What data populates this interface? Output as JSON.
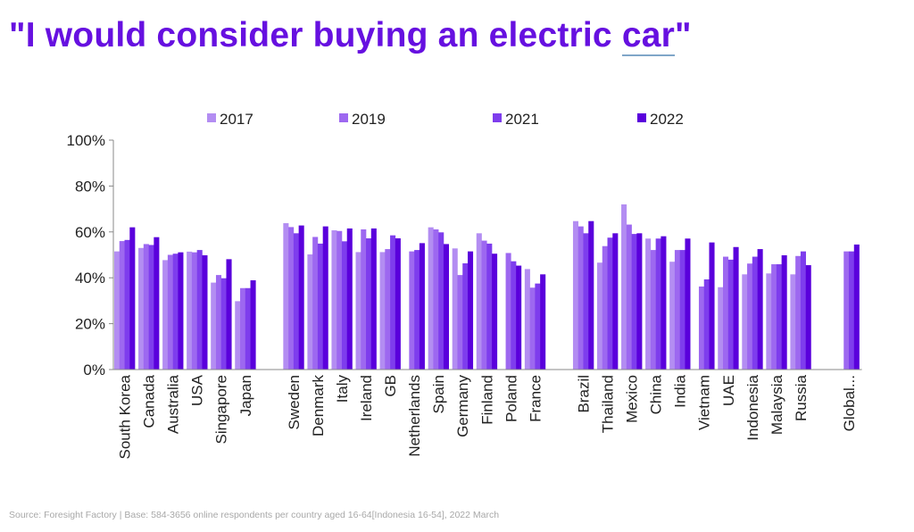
{
  "title": {
    "prefix": "\"I would consider buying an electric ",
    "underlined": "car",
    "suffix": "\""
  },
  "source": "Source: Foresight Factory | Base:  584-3656 online respondents per country aged 16-64[Indonesia 16-54],  2022 March",
  "chart_data": {
    "type": "bar",
    "title": "\"I would consider buying an electric car\"",
    "xlabel": "",
    "ylabel": "",
    "ylim": [
      0,
      100
    ],
    "yticks": [
      "0%",
      "20%",
      "40%",
      "60%",
      "80%",
      "100%"
    ],
    "legend_position": "top",
    "grid": false,
    "series": [
      {
        "name": "2017",
        "color": "#b38df2"
      },
      {
        "name": "2019",
        "color": "#9d68f0"
      },
      {
        "name": "2021",
        "color": "#7e3ded"
      },
      {
        "name": "2022",
        "color": "#5a00dc"
      }
    ],
    "groups": [
      [
        {
          "category": "South Korea",
          "values": [
            51.5,
            56,
            56.5,
            62
          ]
        },
        {
          "category": "Canada",
          "values": [
            53,
            54.7,
            54.3,
            57.7
          ]
        },
        {
          "category": "Australia",
          "values": [
            47.7,
            50,
            50.5,
            51.1
          ]
        },
        {
          "category": "USA",
          "values": [
            51.4,
            51.1,
            52.1,
            49.8
          ]
        },
        {
          "category": "Singapore",
          "values": [
            37.9,
            41.2,
            39.8,
            48.1
          ]
        },
        {
          "category": "Japan",
          "values": [
            29.8,
            35.5,
            35.5,
            38.9
          ]
        }
      ],
      [
        {
          "category": "Sweden",
          "values": [
            63.8,
            62.1,
            59.4,
            62.8
          ]
        },
        {
          "category": "Denmark",
          "values": [
            50.2,
            57.8,
            54.9,
            62.4
          ]
        },
        {
          "category": "Italy",
          "values": [
            60.7,
            60.4,
            55.9,
            61.5
          ]
        },
        {
          "category": "Ireland",
          "values": [
            51.2,
            61.1,
            57.2,
            61.5
          ]
        },
        {
          "category": "GB",
          "values": [
            51.2,
            52.5,
            58.5,
            57.2
          ]
        },
        {
          "category": "Netherlands",
          "values": [
            null,
            51.5,
            52.1,
            55.1
          ]
        },
        {
          "category": "Spain",
          "values": [
            62,
            61.1,
            59.8,
            54.7
          ]
        },
        {
          "category": "Germany",
          "values": [
            52.8,
            41.2,
            46.3,
            51.5
          ]
        },
        {
          "category": "Finland",
          "values": [
            59.4,
            56.2,
            54.9,
            50.5
          ]
        },
        {
          "category": "Poland",
          "values": [
            null,
            50.8,
            47.2,
            45.3
          ]
        },
        {
          "category": "France",
          "values": [
            43.8,
            35.7,
            37.5,
            41.5
          ]
        }
      ],
      [
        {
          "category": "Brazil",
          "values": [
            64.7,
            62.4,
            59.4,
            64.7
          ]
        },
        {
          "category": "Thailand",
          "values": [
            46.6,
            53.8,
            57.5,
            59.4
          ]
        },
        {
          "category": "Mexico",
          "values": [
            72,
            63.2,
            59.1,
            59.4
          ]
        },
        {
          "category": "China",
          "values": [
            57.1,
            52.1,
            57.1,
            58.1
          ]
        },
        {
          "category": "India",
          "values": [
            47,
            52.1,
            52.1,
            57.1
          ]
        },
        {
          "category": "Vietnam",
          "values": [
            null,
            36.2,
            39.3,
            55.4
          ]
        },
        {
          "category": "UAE",
          "values": [
            35.9,
            49.2,
            47.9,
            53.4
          ]
        },
        {
          "category": "Indonesia",
          "values": [
            41.5,
            46.2,
            49.2,
            52.5
          ]
        },
        {
          "category": "Malaysia",
          "values": [
            41.9,
            45.9,
            45.9,
            49.8
          ]
        },
        {
          "category": "Russia",
          "values": [
            41.5,
            49.5,
            51.5,
            45.5
          ]
        }
      ],
      [
        {
          "category": "Global...",
          "values": [
            null,
            51.5,
            51.5,
            54.5
          ]
        }
      ]
    ]
  }
}
